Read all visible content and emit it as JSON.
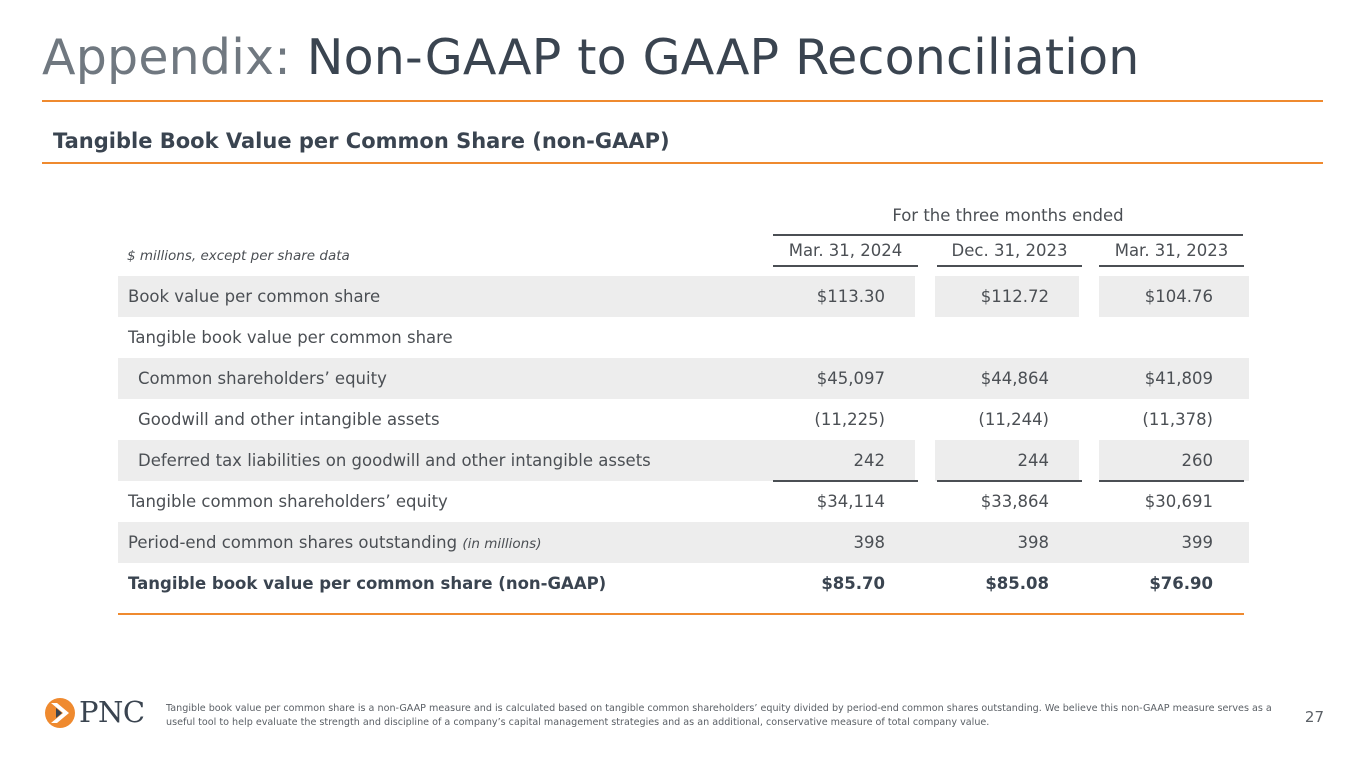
{
  "header": {
    "title_prefix": "Appendix:",
    "title_main": "Non-GAAP to GAAP Reconciliation",
    "subtitle": "Tangible Book Value per Common Share (non-GAAP)"
  },
  "table": {
    "group_header": "For the three months ended",
    "units_label": "$ millions, except per share data",
    "columns": [
      "Mar. 31, 2024",
      "Dec. 31, 2023",
      "Mar. 31, 2023"
    ],
    "rows": [
      {
        "label": "Book value per common share",
        "values": [
          "$113.30",
          "$112.72",
          "$104.76"
        ]
      },
      {
        "label": "Tangible book value per common share",
        "values": [
          "",
          "",
          ""
        ]
      },
      {
        "label": "Common shareholders’ equity",
        "values": [
          "$45,097",
          "$44,864",
          "$41,809"
        ]
      },
      {
        "label": "Goodwill and other intangible assets",
        "values": [
          "(11,225)",
          "(11,244)",
          "(11,378)"
        ]
      },
      {
        "label": "Deferred tax liabilities on goodwill and other intangible assets",
        "values": [
          "242",
          "244",
          "260"
        ]
      },
      {
        "label": "Tangible common shareholders’ equity",
        "values": [
          "$34,114",
          "$33,864",
          "$30,691"
        ]
      },
      {
        "label": "Period-end common shares outstanding",
        "note": "(in millions)",
        "values": [
          "398",
          "398",
          "399"
        ]
      },
      {
        "label": "Tangible book value per common share (non-GAAP)",
        "values": [
          "$85.70",
          "$85.08",
          "$76.90"
        ]
      }
    ]
  },
  "footer": {
    "logo_text": "PNC",
    "footnote": "Tangible book value per common share is a non-GAAP measure and is calculated based on tangible common shareholders’ equity divided by period-end common shares outstanding. We believe this non-GAAP measure serves as a useful tool to help evaluate the strength and discipline of a company’s capital management strategies and as an additional, conservative measure of total company value.",
    "page_number": "27"
  },
  "colors": {
    "accent": "#ef8a2f",
    "title_light": "#707880",
    "title_dark": "#3a4450",
    "row_shade": "#ededed"
  }
}
